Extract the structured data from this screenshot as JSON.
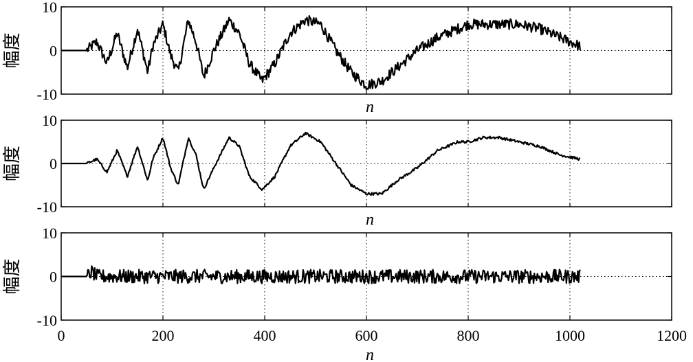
{
  "chart_data": [
    {
      "type": "line",
      "title": "",
      "xlabel": "n",
      "ylabel": "幅度",
      "xlim": [
        0,
        1200
      ],
      "ylim": [
        -10,
        10
      ],
      "xticks": [
        0,
        200,
        400,
        600,
        800,
        1000,
        1200
      ],
      "yticks": [
        -10,
        0,
        10
      ],
      "show_xtick_labels": false,
      "grid": true,
      "series": [
        {
          "noisy": true,
          "x": [
            0,
            50,
            70,
            90,
            110,
            130,
            150,
            170,
            180,
            200,
            215,
            230,
            250,
            265,
            280,
            300,
            330,
            350,
            370,
            395,
            420,
            450,
            480,
            510,
            540,
            570,
            600,
            630,
            660,
            700,
            740,
            780,
            800,
            830,
            860,
            900,
            940,
            980,
            1020
          ],
          "values": [
            0,
            0,
            2,
            -3,
            4,
            -4,
            5,
            -5,
            1,
            6,
            -1,
            -5,
            7,
            2,
            -6,
            0,
            7,
            4,
            -3,
            -7,
            -3,
            4,
            7,
            6,
            0,
            -5,
            -8,
            -7,
            -4,
            0,
            3,
            5,
            6,
            6,
            6,
            6,
            5,
            3,
            1
          ]
        }
      ]
    },
    {
      "type": "line",
      "title": "",
      "xlabel": "n",
      "ylabel": "幅度",
      "xlim": [
        0,
        1200
      ],
      "ylim": [
        -10,
        10
      ],
      "xticks": [
        0,
        200,
        400,
        600,
        800,
        1000,
        1200
      ],
      "yticks": [
        -10,
        0,
        10
      ],
      "show_xtick_labels": false,
      "grid": true,
      "series": [
        {
          "noisy": false,
          "x": [
            0,
            50,
            70,
            90,
            110,
            130,
            150,
            170,
            180,
            200,
            215,
            230,
            250,
            265,
            280,
            300,
            330,
            350,
            370,
            395,
            420,
            450,
            480,
            510,
            540,
            570,
            600,
            630,
            660,
            700,
            740,
            780,
            800,
            830,
            860,
            900,
            940,
            980,
            1020
          ],
          "values": [
            0,
            0,
            1,
            -2,
            3,
            -3,
            4,
            -4,
            1,
            6,
            -1,
            -5,
            6,
            2,
            -6,
            -1,
            6,
            4,
            -3,
            -6,
            -3,
            4,
            7,
            5,
            0,
            -5,
            -7,
            -7,
            -4,
            -1,
            3,
            5,
            5,
            6,
            6,
            5,
            4,
            2,
            1
          ]
        }
      ]
    },
    {
      "type": "line",
      "title": "",
      "xlabel": "n",
      "ylabel": "幅度",
      "xlim": [
        0,
        1200
      ],
      "ylim": [
        -10,
        10
      ],
      "xticks": [
        0,
        200,
        400,
        600,
        800,
        1000,
        1200
      ],
      "yticks": [
        -10,
        0,
        10
      ],
      "show_xtick_labels": true,
      "grid": true,
      "series": [
        {
          "noisy": true,
          "x": [
            0,
            50,
            60,
            70,
            100,
            200,
            300,
            400,
            500,
            600,
            700,
            800,
            900,
            1000,
            1020
          ],
          "values": [
            0,
            0,
            1,
            0,
            0,
            0,
            0,
            0,
            0,
            0,
            0,
            0,
            0,
            0,
            0
          ]
        }
      ]
    }
  ]
}
